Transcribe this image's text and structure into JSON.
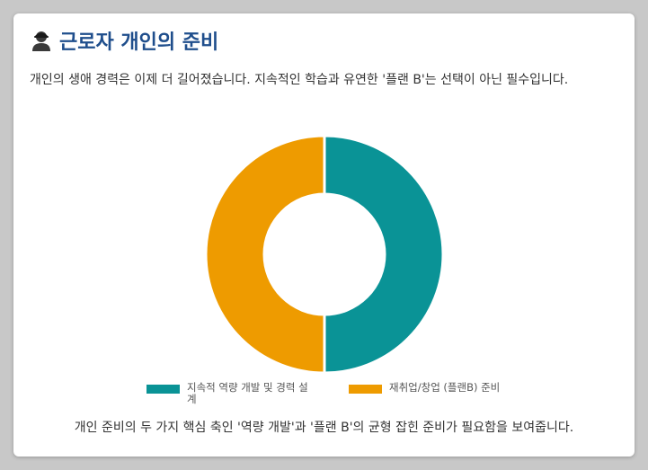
{
  "header": {
    "title": "근로자 개인의 준비",
    "icon": "worker-icon"
  },
  "description": "개인의 생애 경력은 이제 더 길어졌습니다. 지속적인 학습과 유연한 '플랜 B'는 선택이 아닌 필수입니다.",
  "caption": "개인 준비의 두 가지 핵심 축인 '역량 개발'과 '플랜 B'의 균형 잡힌 준비가 필요함을 보여줍니다.",
  "chart_data": {
    "type": "pie",
    "variant": "doughnut",
    "categories": [
      "지속적 역량 개발 및 경력 설계",
      "재취업/창업 (플랜B) 준비"
    ],
    "values": [
      50,
      50
    ],
    "colors": [
      "#0a9396",
      "#ee9b00"
    ],
    "legend_position": "bottom"
  }
}
